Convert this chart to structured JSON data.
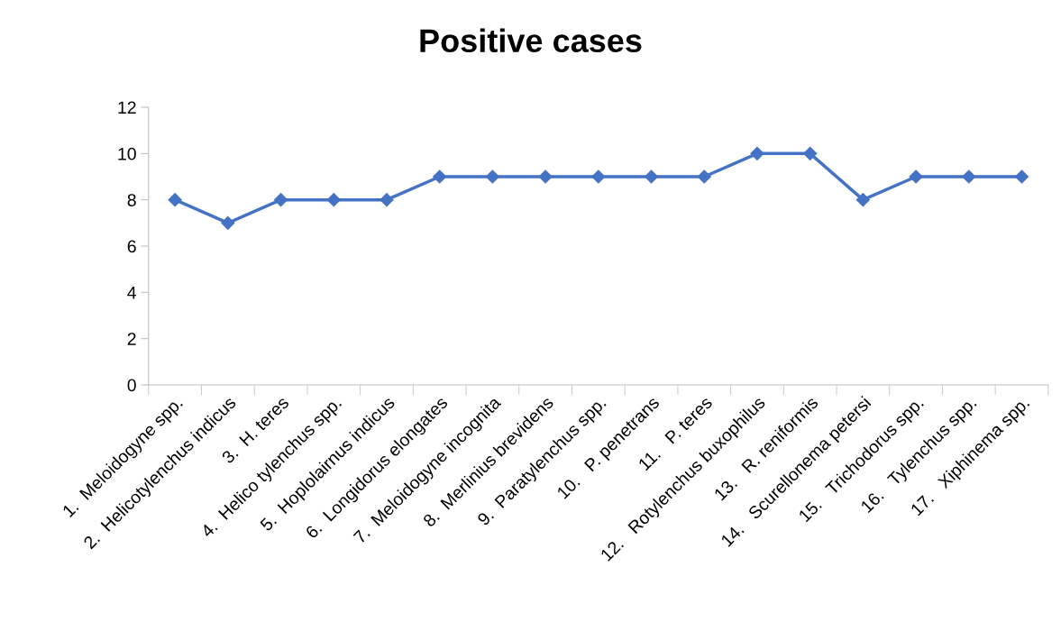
{
  "chart_data": {
    "type": "line",
    "title": "Positive cases",
    "categories": [
      "1.  Meloidogyne spp.",
      "2.  Helicotylenchus indicus",
      "3.  H. teres",
      "4.  Helico tylenchus spp.",
      "5.  Hoplolairnus indicus",
      "6.  Longidorus elongates",
      "7.  Meloidogyne incognita",
      "8.  Merlinius brevidens",
      "9.  Paratylenchus spp.",
      "10.   P. penetrans",
      "11.   P. teres",
      "12.   Rotylenchus buxophilus",
      "13.   R. reniformis",
      "14.   Scurellonema petersi",
      "15.   Trichodorus spp.",
      "16.   Tylenchus spp.",
      "17.   Xiphinema spp."
    ],
    "series": [
      {
        "color": "#4472c4",
        "values": [
          8,
          7,
          8,
          8,
          8,
          9,
          9,
          9,
          9,
          9,
          9,
          10,
          10,
          8,
          9,
          9,
          9
        ]
      }
    ],
    "ylim": [
      0,
      12
    ],
    "yticks": [
      0,
      2,
      4,
      6,
      8,
      10,
      12
    ],
    "grid": false,
    "marker": "diamond",
    "line_style": "solid"
  }
}
